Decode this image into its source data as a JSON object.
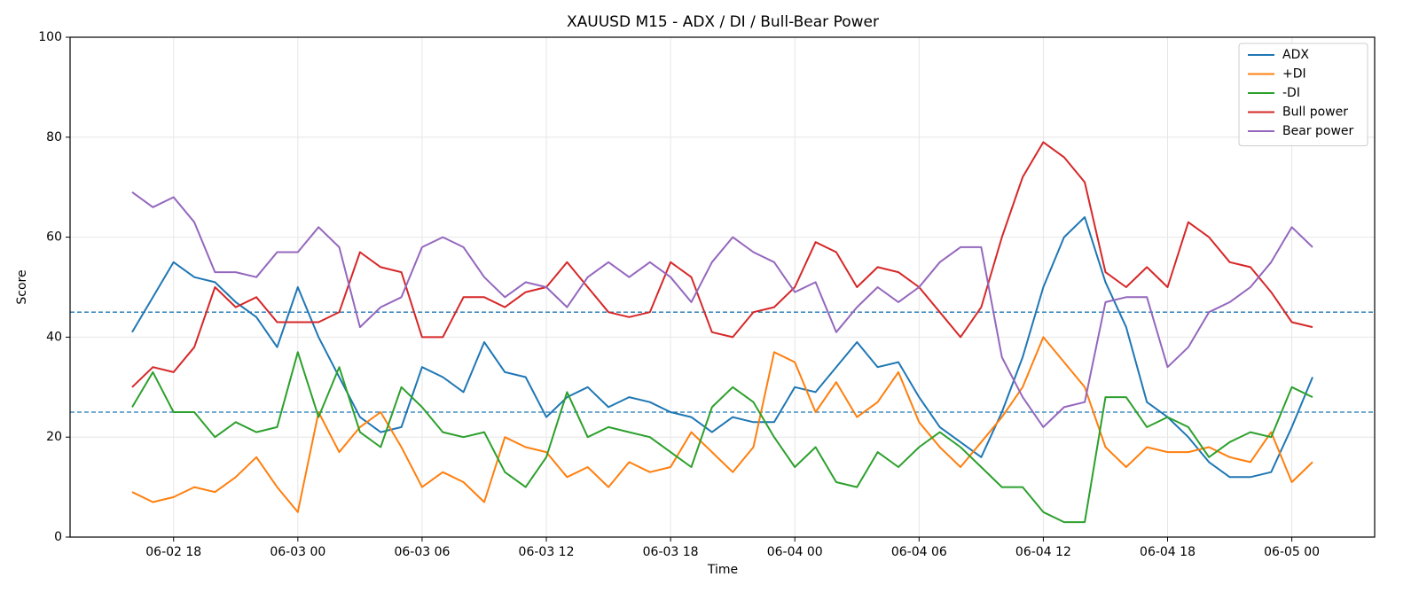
{
  "chart_data": {
    "type": "line",
    "title": "XAUUSD M15 - ADX / DI / Bull-Bear Power",
    "x_label": "Time",
    "y_label": "Score",
    "x": [
      "06-02 16",
      "06-02 17",
      "06-02 18",
      "06-02 19",
      "06-02 20",
      "06-02 21",
      "06-02 22",
      "06-02 23",
      "06-03 00",
      "06-03 01",
      "06-03 02",
      "06-03 03",
      "06-03 04",
      "06-03 05",
      "06-03 06",
      "06-03 07",
      "06-03 08",
      "06-03 09",
      "06-03 10",
      "06-03 11",
      "06-03 12",
      "06-03 13",
      "06-03 14",
      "06-03 15",
      "06-03 16",
      "06-03 17",
      "06-03 18",
      "06-03 19",
      "06-03 20",
      "06-03 21",
      "06-03 22",
      "06-03 23",
      "06-04 00",
      "06-04 01",
      "06-04 02",
      "06-04 03",
      "06-04 04",
      "06-04 05",
      "06-04 06",
      "06-04 07",
      "06-04 08",
      "06-04 09",
      "06-04 10",
      "06-04 11",
      "06-04 12",
      "06-04 13",
      "06-04 14",
      "06-04 15",
      "06-04 16",
      "06-04 17",
      "06-04 18",
      "06-04 19",
      "06-04 20",
      "06-04 21",
      "06-04 22",
      "06-04 23",
      "06-05 00",
      "06-05 01"
    ],
    "series": [
      {
        "name": "ADX",
        "color": "#1f77b4",
        "values": [
          41,
          48,
          55,
          52,
          51,
          47,
          44,
          38,
          50,
          40,
          32,
          24,
          21,
          22,
          34,
          32,
          29,
          39,
          33,
          32,
          24,
          28,
          30,
          26,
          28,
          27,
          25,
          24,
          21,
          24,
          23,
          23,
          30,
          29,
          34,
          39,
          34,
          35,
          28,
          22,
          19,
          16,
          25,
          36,
          50,
          60,
          64,
          51,
          42,
          27,
          24,
          20,
          15,
          12,
          12,
          13,
          22,
          32
        ]
      },
      {
        "name": "+DI",
        "color": "#ff7f0e",
        "values": [
          9,
          7,
          8,
          10,
          9,
          12,
          16,
          10,
          5,
          25,
          17,
          22,
          25,
          18,
          10,
          13,
          11,
          7,
          20,
          18,
          17,
          12,
          14,
          10,
          15,
          13,
          14,
          21,
          17,
          13,
          18,
          37,
          35,
          25,
          31,
          24,
          27,
          33,
          23,
          18,
          14,
          19,
          24,
          30,
          40,
          35,
          30,
          18,
          14,
          18,
          17,
          17,
          18,
          16,
          15,
          21,
          11,
          15
        ]
      },
      {
        "name": "-DI",
        "color": "#2ca02c",
        "values": [
          26,
          33,
          25,
          25,
          20,
          23,
          21,
          22,
          37,
          24,
          34,
          21,
          18,
          30,
          26,
          21,
          20,
          21,
          13,
          10,
          16,
          29,
          20,
          22,
          21,
          20,
          17,
          14,
          26,
          30,
          27,
          20,
          14,
          18,
          11,
          10,
          17,
          14,
          18,
          21,
          18,
          14,
          10,
          10,
          5,
          3,
          3,
          28,
          28,
          22,
          24,
          22,
          16,
          19,
          21,
          20,
          30,
          28
        ]
      },
      {
        "name": "Bull power",
        "color": "#d62728",
        "values": [
          30,
          34,
          33,
          38,
          50,
          46,
          48,
          43,
          43,
          43,
          45,
          57,
          54,
          53,
          40,
          40,
          48,
          48,
          46,
          49,
          50,
          55,
          50,
          45,
          44,
          45,
          55,
          52,
          41,
          40,
          45,
          46,
          50,
          59,
          57,
          50,
          54,
          53,
          50,
          45,
          40,
          46,
          60,
          72,
          79,
          76,
          71,
          53,
          50,
          54,
          50,
          63,
          60,
          55,
          54,
          49,
          43,
          42
        ]
      },
      {
        "name": "Bear power",
        "color": "#9467bd",
        "values": [
          69,
          66,
          68,
          63,
          53,
          53,
          52,
          57,
          57,
          62,
          58,
          42,
          46,
          48,
          58,
          60,
          58,
          52,
          48,
          51,
          50,
          46,
          52,
          55,
          52,
          55,
          52,
          47,
          55,
          60,
          57,
          55,
          49,
          51,
          41,
          46,
          50,
          47,
          50,
          55,
          58,
          58,
          36,
          28,
          22,
          26,
          27,
          47,
          48,
          48,
          34,
          38,
          45,
          47,
          50,
          55,
          62,
          58
        ]
      }
    ],
    "hlines": [
      25,
      45
    ],
    "hline_color": "#1f77b4",
    "xlim": [
      "06-02 13",
      "06-05 04"
    ],
    "xticks": [
      "06-02 18",
      "06-03 00",
      "06-03 06",
      "06-03 12",
      "06-03 18",
      "06-04 00",
      "06-04 06",
      "06-04 12",
      "06-04 18",
      "06-05 00"
    ],
    "ylim": [
      0,
      100
    ],
    "yticks": [
      0,
      20,
      40,
      60,
      80,
      100
    ],
    "grid": true,
    "legend": "upper right"
  }
}
